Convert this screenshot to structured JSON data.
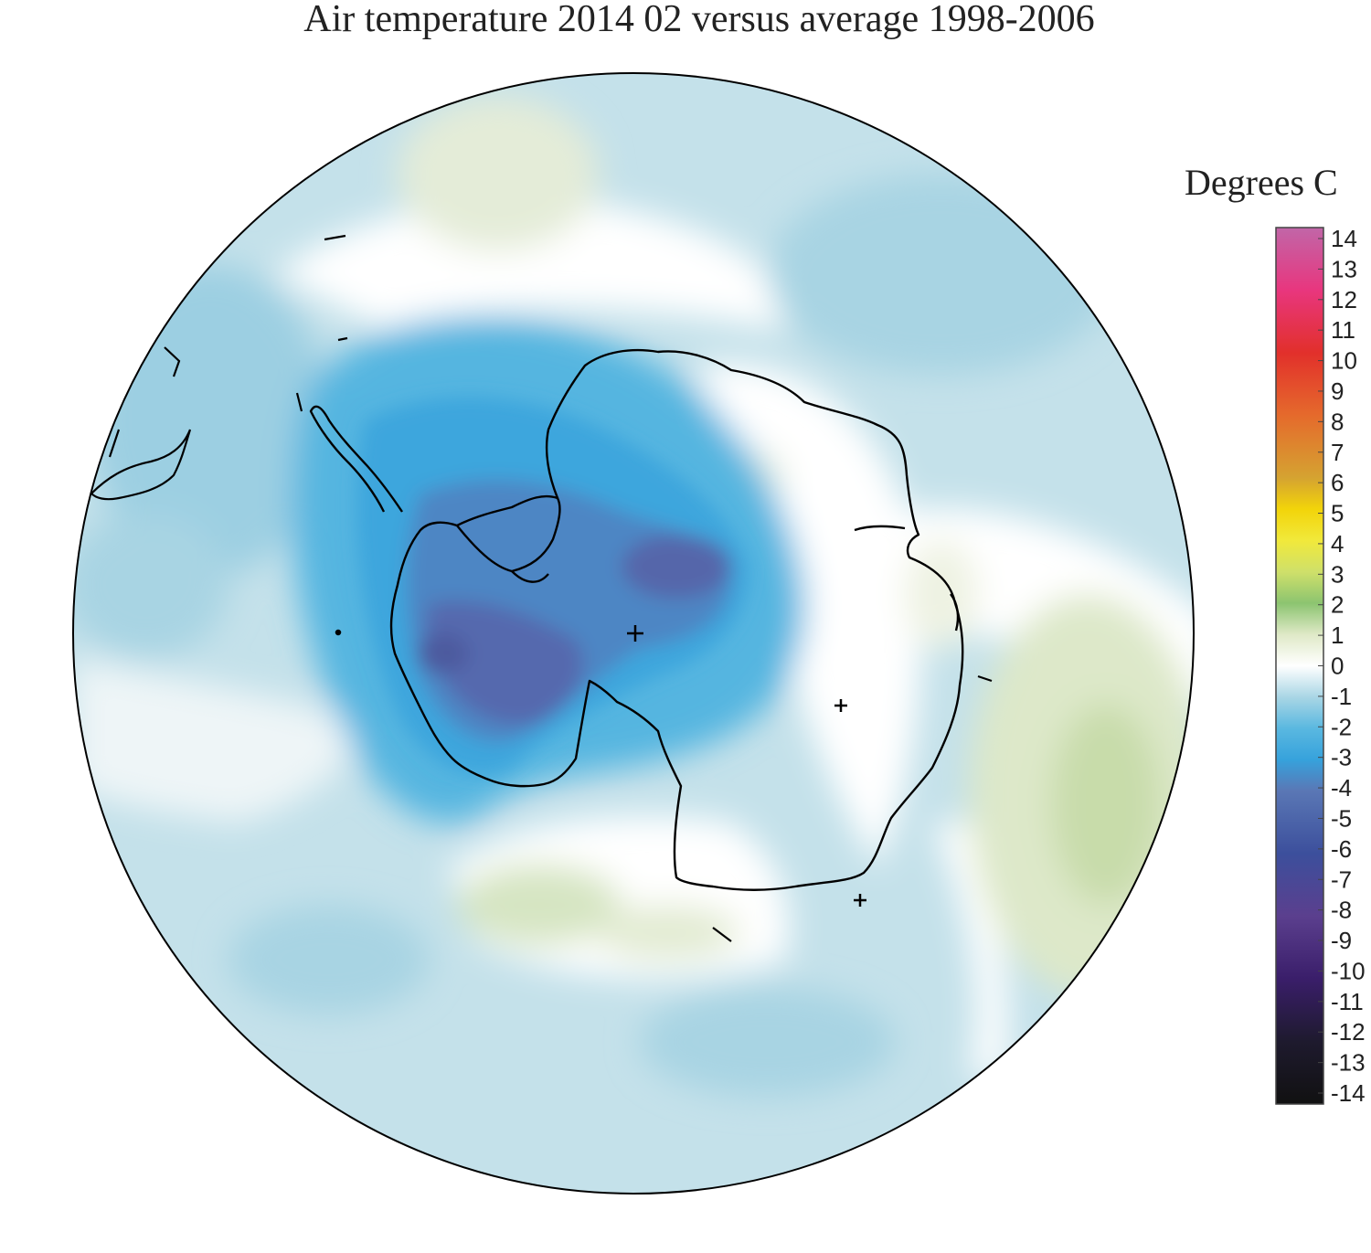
{
  "title": "Air temperature 2014 02 versus average 1998-2006",
  "legend": {
    "title": "Degrees C",
    "ticks": [
      "14",
      "13",
      "12",
      "11",
      "10",
      "9",
      "8",
      "7",
      "6",
      "5",
      "4",
      "3",
      "2",
      "1",
      "0",
      "-1",
      "-2",
      "-3",
      "-4",
      "-5",
      "-6",
      "-7",
      "-8",
      "-9",
      "-10",
      "-11",
      "-12",
      "-13",
      "-14"
    ],
    "range": [
      -14,
      14
    ],
    "color_stops": [
      {
        "value": 14,
        "color": "#c166a8"
      },
      {
        "value": 12,
        "color": "#e8367e"
      },
      {
        "value": 10,
        "color": "#e2302b"
      },
      {
        "value": 8,
        "color": "#e56a2c"
      },
      {
        "value": 6,
        "color": "#d5a331"
      },
      {
        "value": 5,
        "color": "#f2d40a"
      },
      {
        "value": 4,
        "color": "#f1e93b"
      },
      {
        "value": 3,
        "color": "#cfe06a"
      },
      {
        "value": 2,
        "color": "#8cc470"
      },
      {
        "value": 1,
        "color": "#dfe9c7"
      },
      {
        "value": 0,
        "color": "#ffffff"
      },
      {
        "value": -1,
        "color": "#a9d6e5"
      },
      {
        "value": -2,
        "color": "#5ab8e0"
      },
      {
        "value": -3,
        "color": "#36a2dc"
      },
      {
        "value": -4,
        "color": "#5a77b5"
      },
      {
        "value": -6,
        "color": "#3c4f9c"
      },
      {
        "value": -8,
        "color": "#5b3f8e"
      },
      {
        "value": -10,
        "color": "#3a1e6a"
      },
      {
        "value": -12,
        "color": "#1e1a2e"
      },
      {
        "value": -14,
        "color": "#111111"
      }
    ]
  }
}
